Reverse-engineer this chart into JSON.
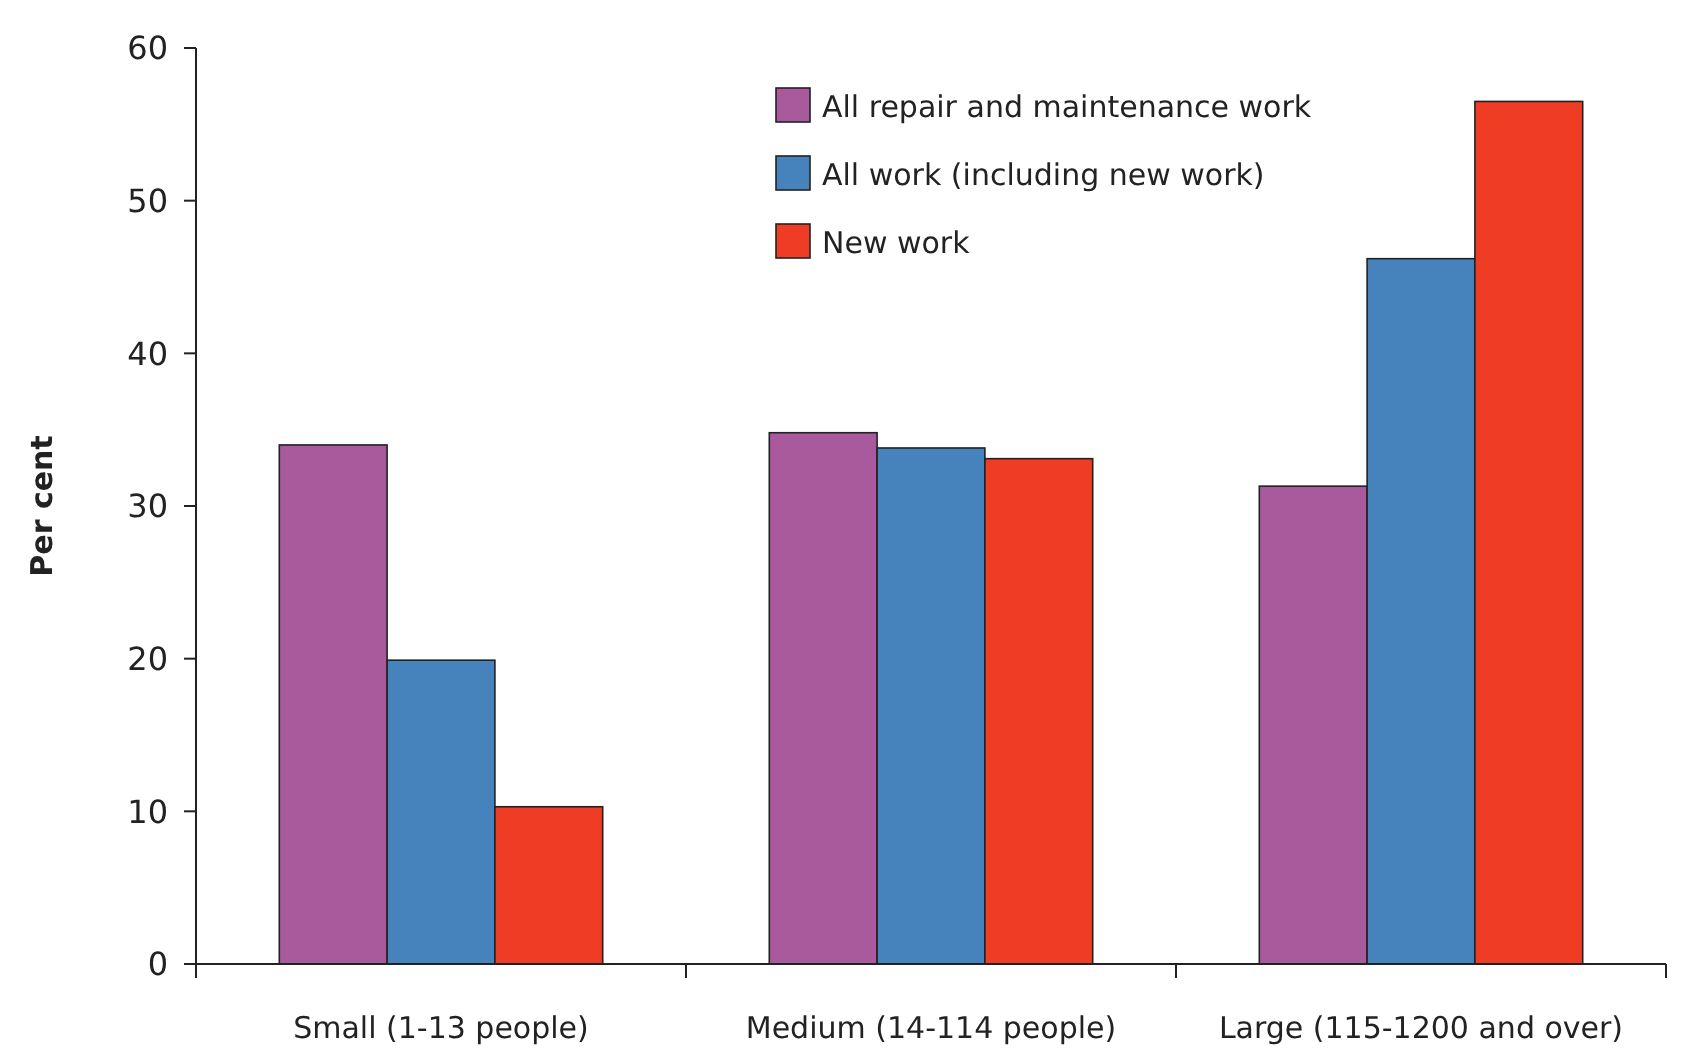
{
  "chart_data": {
    "type": "bar",
    "ylabel": "Per cent",
    "categories": [
      "Small (1-13 people)",
      "Medium (14-114 people)",
      "Large (115-1200 and over)"
    ],
    "series": [
      {
        "name": "All repair and maintenance work",
        "color": "#a85a9c",
        "values": [
          34,
          34.8,
          31.3
        ]
      },
      {
        "name": "All work (including new work)",
        "color": "#4682bb",
        "values": [
          19.9,
          33.8,
          46.2
        ]
      },
      {
        "name": "New work",
        "color": "#ee3d24",
        "values": [
          10.3,
          33.1,
          56.5
        ]
      }
    ],
    "ylim": [
      0,
      60
    ],
    "yticks": [
      0,
      10,
      20,
      30,
      40,
      50,
      60
    ],
    "grid": false,
    "legend": "top right"
  }
}
